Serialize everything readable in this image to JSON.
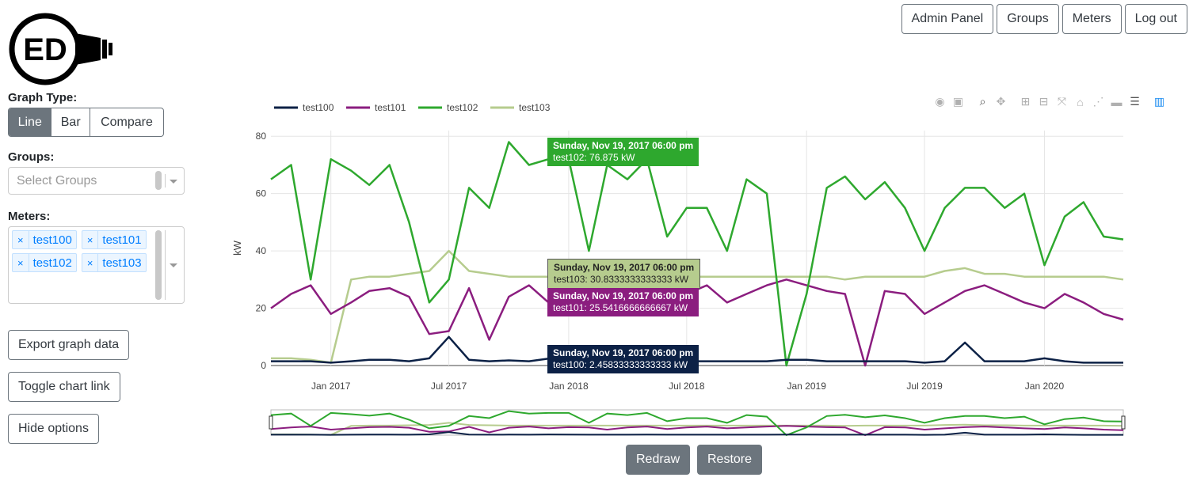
{
  "logo": {
    "text": "ED"
  },
  "nav": {
    "admin": "Admin Panel",
    "groups": "Groups",
    "meters": "Meters",
    "logout": "Log out"
  },
  "graph_type": {
    "label": "Graph Type:",
    "options": [
      "Line",
      "Bar",
      "Compare"
    ],
    "selected": "Line"
  },
  "groups": {
    "label": "Groups:",
    "placeholder": "Select Groups"
  },
  "meters": {
    "label": "Meters:",
    "selected": [
      "test100",
      "test101",
      "test102",
      "test103"
    ]
  },
  "buttons": {
    "export": "Export graph data",
    "toggle_link": "Toggle chart link",
    "hide_options": "Hide options",
    "redraw": "Redraw",
    "restore": "Restore"
  },
  "colors": {
    "test100": "#0c2146",
    "test101": "#8b1d7f",
    "test102": "#2ea82e",
    "test103": "#b6cc8e",
    "accent": "#6c757d",
    "chip": "#007eff"
  },
  "tooltips": [
    {
      "date": "Sunday, Nov 19, 2017 06:00 pm",
      "text": "test102: 76.875 kW"
    },
    {
      "date": "Sunday, Nov 19, 2017 06:00 pm",
      "text": "test103: 30.8333333333333 kW"
    },
    {
      "date": "Sunday, Nov 19, 2017 06:00 pm",
      "text": "test101: 25.5416666666667 kW"
    },
    {
      "date": "Sunday, Nov 19, 2017 06:00 pm",
      "text": "test100: 2.45833333333333 kW"
    }
  ],
  "modebar_icons": [
    "camera-icon",
    "save-icon",
    "zoom-icon",
    "pan-icon",
    "zoom-in-icon",
    "zoom-out-icon",
    "autoscale-icon",
    "home-icon",
    "spike-lines-icon",
    "hover-closest-icon",
    "hover-compare-icon",
    "plotly-logo-icon"
  ],
  "chart_data": {
    "type": "line",
    "ylabel": "kW",
    "ylim": [
      0,
      82
    ],
    "yticks": [
      0,
      20,
      40,
      60,
      80
    ],
    "xticks": [
      "Jan 2017",
      "Jul 2017",
      "Jan 2018",
      "Jul 2018",
      "Jan 2019",
      "Jul 2019",
      "Jan 2020"
    ],
    "x_range": [
      "2016-10-01",
      "2020-05-01"
    ],
    "legend_position": "top-left",
    "x": [
      "2016-10-01",
      "2016-11-01",
      "2016-12-01",
      "2017-01-01",
      "2017-02-01",
      "2017-03-01",
      "2017-04-01",
      "2017-05-01",
      "2017-06-01",
      "2017-07-01",
      "2017-08-01",
      "2017-09-01",
      "2017-10-01",
      "2017-11-01",
      "2017-12-01",
      "2018-01-01",
      "2018-02-01",
      "2018-03-01",
      "2018-04-01",
      "2018-05-01",
      "2018-06-01",
      "2018-07-01",
      "2018-08-01",
      "2018-09-01",
      "2018-10-01",
      "2018-11-01",
      "2018-12-01",
      "2019-01-01",
      "2019-02-01",
      "2019-03-01",
      "2019-04-01",
      "2019-05-01",
      "2019-06-01",
      "2019-07-01",
      "2019-08-01",
      "2019-09-01",
      "2019-10-01",
      "2019-11-01",
      "2019-12-01",
      "2020-01-01",
      "2020-02-01",
      "2020-03-01",
      "2020-04-01",
      "2020-05-01"
    ],
    "series": [
      {
        "name": "test100",
        "values": [
          1.5,
          1.5,
          1.5,
          1.0,
          1.5,
          2.0,
          2.0,
          1.5,
          2.5,
          10.0,
          2.0,
          1.5,
          1.8,
          1.5,
          2.4,
          2.0,
          1.5,
          1.5,
          1.5,
          2.0,
          1.5,
          1.5,
          1.5,
          1.5,
          1.5,
          1.5,
          2.0,
          2.0,
          1.5,
          1.5,
          1.5,
          1.5,
          1.5,
          1.0,
          1.5,
          8.0,
          1.5,
          1.5,
          1.5,
          2.5,
          1.5,
          1.0,
          1.0,
          1.0
        ]
      },
      {
        "name": "test101",
        "values": [
          20,
          25,
          28,
          18,
          22,
          26,
          27,
          24,
          11,
          12,
          27,
          9,
          24,
          28,
          22,
          26,
          25,
          18,
          25,
          28,
          20,
          25,
          28,
          22,
          25,
          28,
          30,
          28,
          26,
          25,
          0,
          26,
          25,
          18,
          22,
          26,
          28,
          25,
          22,
          20,
          25,
          22,
          18,
          16
        ]
      },
      {
        "name": "test102",
        "values": [
          65,
          70,
          30,
          72,
          68,
          63,
          70,
          50,
          22,
          30,
          62,
          55,
          78,
          70,
          72,
          72,
          40,
          70,
          65,
          72,
          45,
          55,
          55,
          40,
          65,
          60,
          0,
          25,
          62,
          66,
          58,
          64,
          55,
          40,
          55,
          62,
          62,
          55,
          60,
          35,
          52,
          57,
          45,
          44
        ]
      },
      {
        "name": "test103",
        "values": [
          2.5,
          2.5,
          2.0,
          1.0,
          30,
          31,
          31,
          32,
          33,
          40,
          33,
          32,
          31,
          31,
          31,
          31,
          31,
          31,
          31,
          31,
          31,
          31,
          31,
          31,
          31,
          31,
          31,
          31,
          31,
          30,
          31,
          31,
          31,
          31,
          33,
          34,
          32,
          32,
          31,
          31,
          31,
          31,
          31,
          30
        ]
      }
    ]
  }
}
